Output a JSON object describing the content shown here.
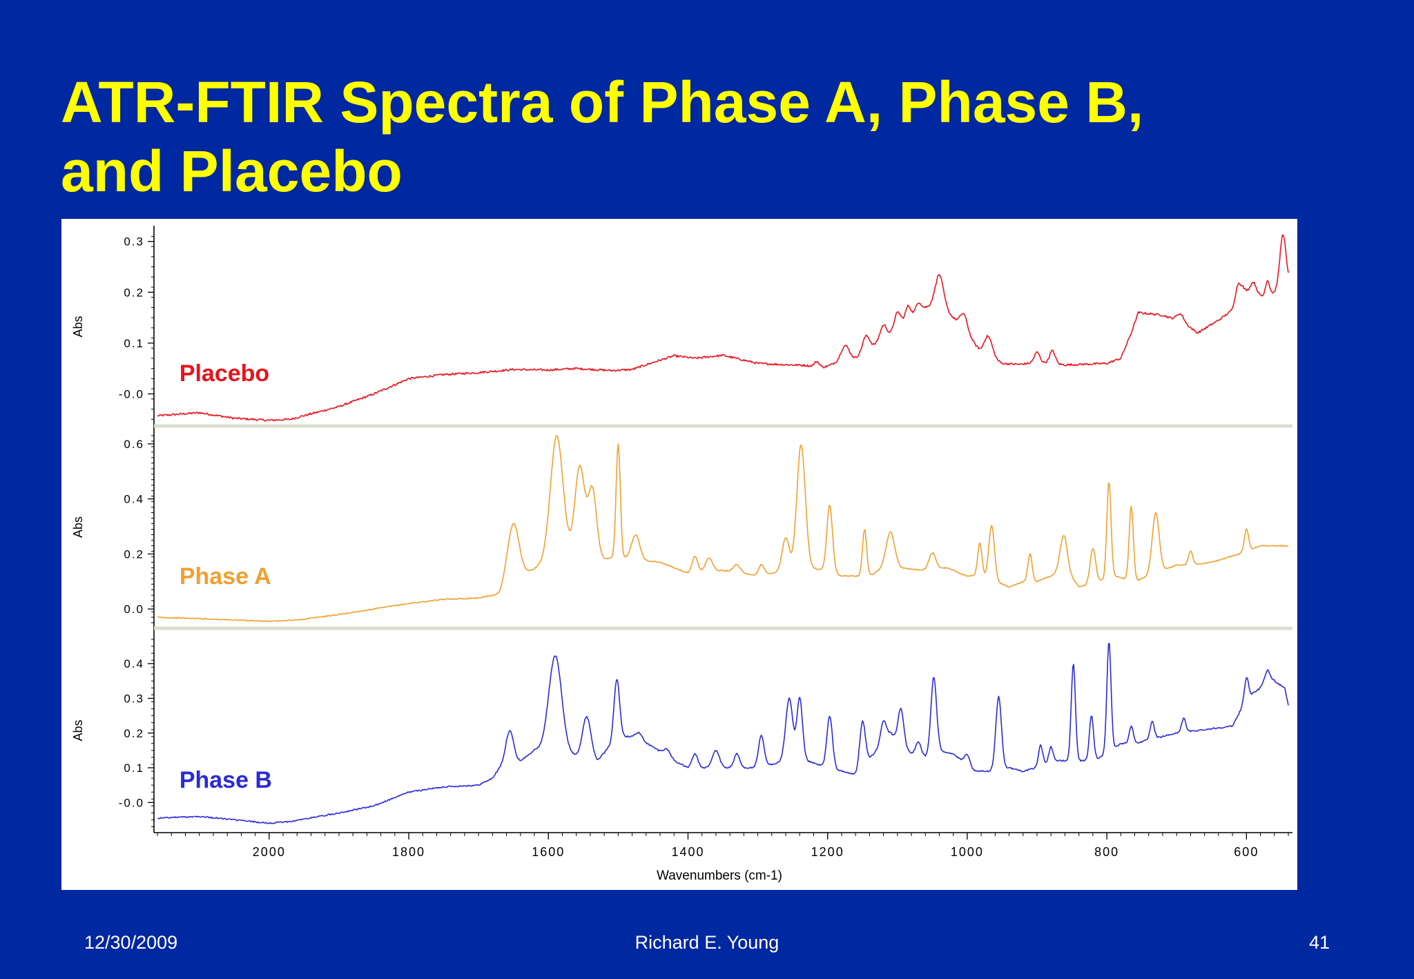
{
  "title_lines": [
    "ATR-FTIR Spectra of Phase A, Phase B,",
    "and Placebo"
  ],
  "footer": {
    "date": "12/30/2009",
    "author": "Richard E. Young",
    "page": "41"
  },
  "chart_data": {
    "type": "line",
    "xlabel": "Wavenumbers (cm-1)",
    "xlim": [
      2165,
      540
    ],
    "x_ticks": [
      {
        "value": 2000,
        "label": "2000"
      },
      {
        "value": 1800,
        "label": "1800"
      },
      {
        "value": 1600,
        "label": "1600"
      },
      {
        "value": 1400,
        "label": "1400"
      },
      {
        "value": 1200,
        "label": "1200"
      },
      {
        "value": 1000,
        "label": "1000"
      },
      {
        "value": 800,
        "label": "800"
      },
      {
        "value": 600,
        "label": "600"
      }
    ],
    "panels": [
      {
        "name": "Placebo",
        "color": "#e8141c",
        "ylabel": "Abs",
        "ylim": [
          -0.055,
          0.32
        ],
        "y_ticks": [
          {
            "value": 0.3,
            "label": "0.3"
          },
          {
            "value": 0.2,
            "label": "0.2"
          },
          {
            "value": 0.1,
            "label": "0.1"
          },
          {
            "value": 0.0,
            "label": "-0.0"
          }
        ],
        "baseline": [
          [
            2160,
            -0.043
          ],
          [
            2100,
            -0.037
          ],
          [
            2050,
            -0.048
          ],
          [
            2000,
            -0.052
          ],
          [
            1970,
            -0.05
          ],
          [
            1900,
            -0.025
          ],
          [
            1850,
            0.0
          ],
          [
            1800,
            0.03
          ],
          [
            1750,
            0.038
          ],
          [
            1700,
            0.042
          ],
          [
            1650,
            0.048
          ],
          [
            1600,
            0.047
          ],
          [
            1560,
            0.05
          ],
          [
            1510,
            0.046
          ],
          [
            1480,
            0.048
          ],
          [
            1450,
            0.062
          ],
          [
            1420,
            0.075
          ],
          [
            1390,
            0.07
          ],
          [
            1350,
            0.076
          ],
          [
            1300,
            0.06
          ],
          [
            1270,
            0.058
          ],
          [
            1230,
            0.056
          ],
          [
            1210,
            0.05
          ],
          [
            1190,
            0.06
          ],
          [
            1160,
            0.07
          ],
          [
            1130,
            0.098
          ],
          [
            1100,
            0.12
          ],
          [
            1080,
            0.15
          ],
          [
            1060,
            0.17
          ],
          [
            1040,
            0.175
          ],
          [
            1020,
            0.15
          ],
          [
            1000,
            0.12
          ],
          [
            980,
            0.08
          ],
          [
            950,
            0.06
          ],
          [
            925,
            0.058
          ],
          [
            900,
            0.062
          ],
          [
            880,
            0.06
          ],
          [
            860,
            0.057
          ],
          [
            840,
            0.058
          ],
          [
            800,
            0.06
          ],
          [
            780,
            0.07
          ],
          [
            765,
            0.12
          ],
          [
            755,
            0.16
          ],
          [
            720,
            0.155
          ],
          [
            690,
            0.14
          ],
          [
            670,
            0.12
          ],
          [
            640,
            0.145
          ],
          [
            620,
            0.165
          ],
          [
            605,
            0.205
          ],
          [
            590,
            0.2
          ],
          [
            575,
            0.19
          ],
          [
            560,
            0.2
          ],
          [
            545,
            0.23
          ],
          [
            540,
            0.225
          ]
        ],
        "peaks": [
          [
            1215,
            0.012,
            4
          ],
          [
            1175,
            0.03,
            6
          ],
          [
            1145,
            0.03,
            5
          ],
          [
            1120,
            0.03,
            5
          ],
          [
            1100,
            0.04,
            5
          ],
          [
            1085,
            0.03,
            4
          ],
          [
            1070,
            0.02,
            4
          ],
          [
            1040,
            0.06,
            6
          ],
          [
            1005,
            0.03,
            5
          ],
          [
            970,
            0.04,
            6
          ],
          [
            900,
            0.02,
            4
          ],
          [
            878,
            0.025,
            4
          ],
          [
            695,
            0.015,
            5
          ],
          [
            612,
            0.03,
            4
          ],
          [
            590,
            0.02,
            4
          ],
          [
            570,
            0.03,
            3
          ],
          [
            548,
            0.09,
            4
          ]
        ],
        "noise": 0.004,
        "label_x": 2000,
        "label_y": 0.025
      },
      {
        "name": "Phase A",
        "color": "#f0a030",
        "ylabel": "Abs",
        "ylim": [
          -0.055,
          0.65
        ],
        "y_ticks": [
          {
            "value": 0.6,
            "label": "0.6"
          },
          {
            "value": 0.4,
            "label": "0.4"
          },
          {
            "value": 0.2,
            "label": "0.2"
          },
          {
            "value": 0.0,
            "label": "0.0"
          }
        ],
        "baseline": [
          [
            2160,
            -0.03
          ],
          [
            2100,
            -0.035
          ],
          [
            2000,
            -0.045
          ],
          [
            1960,
            -0.04
          ],
          [
            1900,
            -0.02
          ],
          [
            1850,
            0.0
          ],
          [
            1800,
            0.02
          ],
          [
            1750,
            0.035
          ],
          [
            1700,
            0.04
          ],
          [
            1670,
            0.055
          ],
          [
            1660,
            0.1
          ],
          [
            1640,
            0.12
          ],
          [
            1610,
            0.16
          ],
          [
            1590,
            0.2
          ],
          [
            1560,
            0.19
          ],
          [
            1520,
            0.18
          ],
          [
            1500,
            0.19
          ],
          [
            1480,
            0.18
          ],
          [
            1440,
            0.17
          ],
          [
            1400,
            0.13
          ],
          [
            1350,
            0.14
          ],
          [
            1300,
            0.12
          ],
          [
            1260,
            0.14
          ],
          [
            1230,
            0.15
          ],
          [
            1200,
            0.14
          ],
          [
            1180,
            0.12
          ],
          [
            1140,
            0.12
          ],
          [
            1120,
            0.15
          ],
          [
            1100,
            0.15
          ],
          [
            1060,
            0.14
          ],
          [
            1030,
            0.15
          ],
          [
            1000,
            0.12
          ],
          [
            980,
            0.12
          ],
          [
            940,
            0.08
          ],
          [
            920,
            0.1
          ],
          [
            900,
            0.1
          ],
          [
            880,
            0.12
          ],
          [
            860,
            0.15
          ],
          [
            840,
            0.08
          ],
          [
            820,
            0.09
          ],
          [
            790,
            0.12
          ],
          [
            760,
            0.1
          ],
          [
            740,
            0.12
          ],
          [
            700,
            0.16
          ],
          [
            680,
            0.16
          ],
          [
            650,
            0.17
          ],
          [
            610,
            0.2
          ],
          [
            580,
            0.23
          ],
          [
            540,
            0.23
          ]
        ],
        "peaks": [
          [
            1650,
            0.2,
            8
          ],
          [
            1588,
            0.43,
            9
          ],
          [
            1555,
            0.33,
            7
          ],
          [
            1537,
            0.25,
            6
          ],
          [
            1500,
            0.41,
            3
          ],
          [
            1475,
            0.09,
            6
          ],
          [
            1390,
            0.06,
            4
          ],
          [
            1370,
            0.05,
            5
          ],
          [
            1330,
            0.03,
            5
          ],
          [
            1295,
            0.04,
            4
          ],
          [
            1260,
            0.12,
            5
          ],
          [
            1238,
            0.45,
            6
          ],
          [
            1197,
            0.24,
            4
          ],
          [
            1147,
            0.17,
            3
          ],
          [
            1110,
            0.13,
            6
          ],
          [
            1050,
            0.06,
            5
          ],
          [
            982,
            0.12,
            3
          ],
          [
            965,
            0.2,
            4
          ],
          [
            910,
            0.1,
            3
          ],
          [
            862,
            0.12,
            5
          ],
          [
            820,
            0.13,
            4
          ],
          [
            797,
            0.35,
            3
          ],
          [
            765,
            0.27,
            3
          ],
          [
            730,
            0.22,
            5
          ],
          [
            680,
            0.05,
            3
          ],
          [
            600,
            0.08,
            3
          ]
        ],
        "noise": 0.004,
        "label_x": 2000,
        "label_y": 0.09
      },
      {
        "name": "Phase B",
        "color": "#2a2ad8",
        "ylabel": "Abs",
        "ylim": [
          -0.075,
          0.49
        ],
        "y_ticks": [
          {
            "value": 0.4,
            "label": "0.4"
          },
          {
            "value": 0.3,
            "label": "0.3"
          },
          {
            "value": 0.2,
            "label": "0.2"
          },
          {
            "value": 0.1,
            "label": "0.1"
          },
          {
            "value": 0.0,
            "label": "-0.0"
          }
        ],
        "baseline": [
          [
            2160,
            -0.045
          ],
          [
            2100,
            -0.04
          ],
          [
            2050,
            -0.05
          ],
          [
            2000,
            -0.06
          ],
          [
            1970,
            -0.055
          ],
          [
            1900,
            -0.03
          ],
          [
            1850,
            -0.01
          ],
          [
            1800,
            0.03
          ],
          [
            1750,
            0.045
          ],
          [
            1700,
            0.05
          ],
          [
            1680,
            0.07
          ],
          [
            1660,
            0.13
          ],
          [
            1640,
            0.12
          ],
          [
            1620,
            0.15
          ],
          [
            1600,
            0.16
          ],
          [
            1570,
            0.14
          ],
          [
            1550,
            0.13
          ],
          [
            1530,
            0.12
          ],
          [
            1500,
            0.19
          ],
          [
            1480,
            0.19
          ],
          [
            1450,
            0.16
          ],
          [
            1420,
            0.12
          ],
          [
            1400,
            0.1
          ],
          [
            1350,
            0.1
          ],
          [
            1300,
            0.1
          ],
          [
            1260,
            0.12
          ],
          [
            1230,
            0.12
          ],
          [
            1200,
            0.1
          ],
          [
            1160,
            0.08
          ],
          [
            1130,
            0.15
          ],
          [
            1110,
            0.2
          ],
          [
            1080,
            0.14
          ],
          [
            1060,
            0.13
          ],
          [
            1040,
            0.15
          ],
          [
            1020,
            0.14
          ],
          [
            990,
            0.09
          ],
          [
            970,
            0.09
          ],
          [
            940,
            0.1
          ],
          [
            920,
            0.09
          ],
          [
            900,
            0.1
          ],
          [
            880,
            0.12
          ],
          [
            850,
            0.12
          ],
          [
            820,
            0.12
          ],
          [
            800,
            0.14
          ],
          [
            780,
            0.17
          ],
          [
            760,
            0.17
          ],
          [
            720,
            0.19
          ],
          [
            700,
            0.2
          ],
          [
            660,
            0.21
          ],
          [
            620,
            0.22
          ],
          [
            600,
            0.3
          ],
          [
            580,
            0.33
          ],
          [
            560,
            0.35
          ],
          [
            545,
            0.33
          ],
          [
            540,
            0.28
          ]
        ],
        "peaks": [
          [
            1655,
            0.08,
            5
          ],
          [
            1590,
            0.27,
            9
          ],
          [
            1545,
            0.12,
            6
          ],
          [
            1502,
            0.17,
            4
          ],
          [
            1470,
            0.02,
            5
          ],
          [
            1430,
            0.02,
            5
          ],
          [
            1390,
            0.04,
            4
          ],
          [
            1360,
            0.05,
            5
          ],
          [
            1330,
            0.04,
            4
          ],
          [
            1295,
            0.09,
            4
          ],
          [
            1255,
            0.18,
            5
          ],
          [
            1240,
            0.18,
            4
          ],
          [
            1197,
            0.15,
            4
          ],
          [
            1150,
            0.13,
            4
          ],
          [
            1120,
            0.06,
            4
          ],
          [
            1095,
            0.1,
            4
          ],
          [
            1070,
            0.04,
            4
          ],
          [
            1048,
            0.22,
            4
          ],
          [
            1000,
            0.03,
            4
          ],
          [
            955,
            0.21,
            4
          ],
          [
            895,
            0.06,
            3
          ],
          [
            880,
            0.04,
            3
          ],
          [
            848,
            0.28,
            3
          ],
          [
            822,
            0.13,
            3
          ],
          [
            797,
            0.32,
            3
          ],
          [
            765,
            0.05,
            3
          ],
          [
            735,
            0.05,
            3
          ],
          [
            690,
            0.04,
            3
          ],
          [
            600,
            0.06,
            3
          ],
          [
            570,
            0.04,
            4
          ]
        ],
        "noise": 0.004,
        "label_x": 2000,
        "label_y": 0.042
      }
    ]
  }
}
